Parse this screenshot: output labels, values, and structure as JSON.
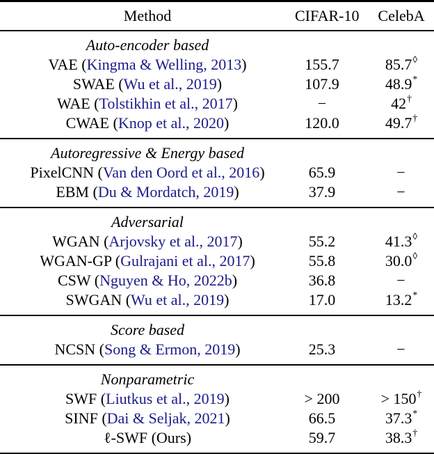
{
  "table": {
    "columns": [
      "Method",
      "CIFAR-10",
      "CelebA"
    ],
    "punct": {
      "open": " (",
      "close": ")"
    },
    "colors": {
      "citation_link": "#1b1b8a",
      "text": "#000000",
      "rule": "#000000",
      "background": "#ffffff"
    },
    "sections": [
      {
        "header": "Auto-encoder based",
        "rows": [
          {
            "method": "VAE",
            "citation": "Kingma & Welling, 2013",
            "cifar": "155.7",
            "celeba": "85.7",
            "celeba_sup": "◊"
          },
          {
            "method": "SWAE",
            "citation": "Wu et al., 2019",
            "cifar": "107.9",
            "celeba": "48.9",
            "celeba_sup": "*"
          },
          {
            "method": "WAE",
            "citation": "Tolstikhin et al., 2017",
            "cifar": "−",
            "celeba": "42",
            "celeba_sup": "†"
          },
          {
            "method": "CWAE",
            "citation": "Knop et al., 2020",
            "cifar": "120.0",
            "celeba": "49.7",
            "celeba_sup": "†"
          }
        ]
      },
      {
        "header": "Autoregressive & Energy based",
        "rows": [
          {
            "method": "PixelCNN",
            "citation": "Van den Oord et al., 2016",
            "cifar": "65.9",
            "celeba": "−",
            "celeba_sup": ""
          },
          {
            "method": "EBM",
            "citation": "Du & Mordatch, 2019",
            "cifar": "37.9",
            "celeba": "−",
            "celeba_sup": ""
          }
        ]
      },
      {
        "header": "Adversarial",
        "rows": [
          {
            "method": "WGAN",
            "citation": "Arjovsky et al., 2017",
            "cifar": "55.2",
            "celeba": "41.3",
            "celeba_sup": "◊"
          },
          {
            "method": "WGAN-GP",
            "citation": "Gulrajani et al., 2017",
            "cifar": "55.8",
            "celeba": "30.0",
            "celeba_sup": "◊"
          },
          {
            "method": "CSW",
            "citation": "Nguyen & Ho, 2022b",
            "cifar": "36.8",
            "celeba": "−",
            "celeba_sup": ""
          },
          {
            "method": "SWGAN",
            "citation": "Wu et al., 2019",
            "cifar": "17.0",
            "celeba": "13.2",
            "celeba_sup": "*"
          }
        ]
      },
      {
        "header": "Score based",
        "rows": [
          {
            "method": "NCSN",
            "citation": "Song & Ermon, 2019",
            "cifar": "25.3",
            "celeba": "−",
            "celeba_sup": ""
          }
        ]
      },
      {
        "header": "Nonparametric",
        "rows": [
          {
            "method": "SWF",
            "citation": "Liutkus et al., 2019",
            "cifar": "> 200",
            "celeba": "> 150",
            "celeba_sup": "†"
          },
          {
            "method": "SINF",
            "citation": "Dai & Seljak, 2021",
            "cifar": "66.5",
            "celeba": "37.3",
            "celeba_sup": "*"
          },
          {
            "method": "ℓ-SWF",
            "citation": "Ours",
            "cifar": "59.7",
            "celeba": "38.3",
            "celeba_sup": "†"
          }
        ]
      }
    ]
  }
}
